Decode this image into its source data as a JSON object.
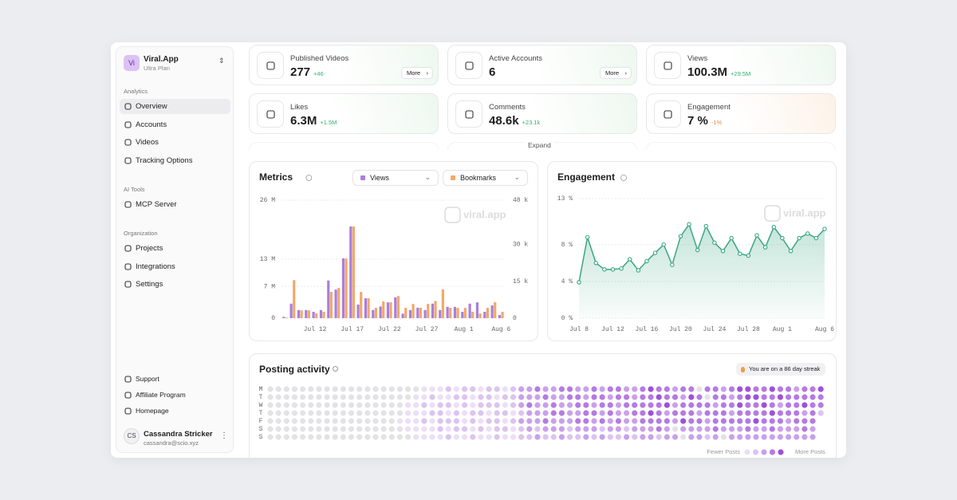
{
  "sidebar": {
    "avatar": "Vi",
    "app": "Viral.App",
    "plan": "Ultra Plan",
    "sections": [
      {
        "title": "Analytics",
        "items": [
          "Overview",
          "Accounts",
          "Videos",
          "Tracking Options"
        ]
      },
      {
        "title": "AI Tools",
        "items": [
          "MCP Server"
        ]
      },
      {
        "title": "Organization",
        "items": [
          "Projects",
          "Integrations",
          "Settings"
        ]
      }
    ],
    "footer": [
      "Support",
      "Affiliate Program",
      "Homepage"
    ],
    "user": {
      "initials": "CS",
      "name": "Cassandra Stricker",
      "email": "cassandra@scio.xyz"
    }
  },
  "stats": [
    {
      "label": "Published Videos",
      "value": "277",
      "delta": "+46",
      "action": "More"
    },
    {
      "label": "Active Accounts",
      "value": "6",
      "action": "More"
    },
    {
      "label": "Views",
      "value": "100.3M",
      "delta": "+29.5M"
    },
    {
      "label": "Likes",
      "value": "6.3M",
      "delta": "+1.5M"
    },
    {
      "label": "Comments",
      "value": "48.6k",
      "delta": "+23.1k"
    },
    {
      "label": "Engagement",
      "value": "7 %",
      "delta": "-1%"
    }
  ],
  "expand": "Expand",
  "chart_data": [
    {
      "type": "bar",
      "title": "Metrics",
      "watermark": "viral.app",
      "categories": [
        null,
        null,
        null,
        null,
        "Jul 12",
        null,
        null,
        null,
        null,
        "Jul 17",
        null,
        null,
        null,
        null,
        "Jul 22",
        null,
        null,
        null,
        null,
        "Jul 27",
        null,
        null,
        null,
        null,
        "Aug 1",
        null,
        null,
        null,
        null,
        "Aug 6"
      ],
      "series": [
        {
          "name": "Views",
          "color": "#a97ee0",
          "values": [
            0.3,
            3.2,
            1.8,
            1.8,
            1.4,
            1.8,
            8.3,
            6.3,
            13.2,
            20.2,
            3,
            4.4,
            1.8,
            2.6,
            3.5,
            4.6,
            1,
            1.8,
            2.3,
            1.8,
            3.2,
            1.8,
            2.5,
            2.5,
            1.4,
            3.2,
            3.5,
            1.4,
            2.8,
            0.7
          ]
        },
        {
          "name": "Bookmarks",
          "color": "#f2a968",
          "axis": "y2",
          "values": [
            0.3,
            15.5,
            3.2,
            3.2,
            2,
            2.6,
            10.7,
            12.3,
            24.3,
            37.3,
            10.7,
            8.1,
            4.2,
            6.8,
            6.5,
            9,
            4.2,
            5.8,
            4.2,
            5.8,
            7,
            11.7,
            4.2,
            4.2,
            4.2,
            2.6,
            1.9,
            4.2,
            6.5,
            2.6
          ]
        }
      ],
      "ylim": [
        0,
        26
      ],
      "yticks": [
        0,
        {
          "value": 7,
          "label": "7 M"
        },
        {
          "value": 13,
          "label": "13 M"
        },
        {
          "value": 26,
          "label": "26 M"
        }
      ],
      "y2lim": [
        0,
        48
      ],
      "y2ticks": [
        0,
        {
          "value": 15,
          "label": "15 k"
        },
        {
          "value": 30,
          "label": "30 k"
        },
        {
          "value": 48,
          "label": "48 k"
        }
      ],
      "grid": true
    },
    {
      "type": "line",
      "title": "Engagement",
      "watermark": "viral.app",
      "color": "#3aa683",
      "categories": [
        "Jul 8",
        null,
        null,
        null,
        "Jul 12",
        null,
        null,
        null,
        "Jul 16",
        null,
        null,
        null,
        "Jul 20",
        null,
        null,
        null,
        "Jul 24",
        null,
        null,
        null,
        "Jul 28",
        null,
        null,
        null,
        "Aug 1",
        null,
        null,
        null,
        null,
        "Aug 6"
      ],
      "values": [
        3.9,
        8.8,
        6.0,
        5.3,
        5.3,
        5.4,
        6.4,
        5.2,
        6.2,
        7.1,
        8.0,
        5.8,
        8.9,
        10.2,
        7.4,
        10.0,
        8.2,
        7.3,
        8.7,
        7.0,
        6.8,
        9.0,
        7.7,
        9.9,
        8.7,
        7.3,
        8.7,
        9.2,
        8.7,
        9.7
      ],
      "ylim": [
        0,
        13
      ],
      "yticks": [
        {
          "value": 0,
          "label": "0 %"
        },
        {
          "value": 4,
          "label": "4 %"
        },
        {
          "value": 8,
          "label": "8 %"
        },
        {
          "value": 13,
          "label": "13 %"
        }
      ],
      "grid": true
    }
  ],
  "posting": {
    "title": "Posting activity",
    "streak": "You are on a 86 day streak",
    "days": [
      "M",
      "T",
      "W",
      "T",
      "F",
      "S",
      "S"
    ],
    "legend_low": "Fewer Posts",
    "legend_high": "More Posts",
    "levels": [
      [
        0,
        0,
        0,
        0,
        0,
        0,
        0,
        0,
        0,
        0,
        0,
        0,
        0,
        0,
        0,
        0,
        0,
        0,
        0,
        1,
        1,
        1,
        2,
        1,
        2,
        2,
        1,
        2,
        2,
        1,
        2,
        3,
        3,
        4,
        3,
        3,
        4,
        4,
        3,
        3,
        4,
        3,
        4,
        4,
        3,
        3,
        4,
        5,
        4,
        4,
        3,
        4,
        4,
        0,
        4,
        4,
        3,
        4,
        5,
        5,
        4,
        4,
        5,
        4,
        4,
        3,
        4,
        4,
        5
      ],
      [
        0,
        0,
        0,
        0,
        0,
        0,
        0,
        0,
        0,
        0,
        0,
        0,
        0,
        0,
        0,
        0,
        0,
        0,
        1,
        1,
        2,
        1,
        1,
        2,
        2,
        1,
        2,
        2,
        1,
        2,
        2,
        3,
        3,
        3,
        4,
        3,
        3,
        4,
        4,
        3,
        4,
        4,
        3,
        4,
        4,
        3,
        4,
        4,
        5,
        4,
        4,
        3,
        5,
        4,
        0,
        4,
        4,
        3,
        4,
        5,
        5,
        4,
        4,
        5,
        4,
        4,
        4,
        4,
        4
      ],
      [
        0,
        0,
        0,
        0,
        0,
        0,
        0,
        0,
        0,
        0,
        0,
        0,
        0,
        0,
        0,
        0,
        0,
        1,
        1,
        2,
        1,
        2,
        2,
        1,
        2,
        1,
        2,
        2,
        2,
        1,
        2,
        3,
        4,
        3,
        3,
        4,
        3,
        3,
        4,
        4,
        3,
        4,
        4,
        3,
        4,
        4,
        4,
        4,
        4,
        5,
        3,
        4,
        4,
        4,
        4,
        3,
        4,
        4,
        5,
        4,
        4,
        5,
        4,
        3,
        4,
        4,
        5,
        4,
        4
      ],
      [
        0,
        0,
        0,
        0,
        0,
        0,
        0,
        0,
        0,
        0,
        0,
        0,
        0,
        0,
        0,
        0,
        0,
        1,
        1,
        1,
        2,
        2,
        1,
        2,
        1,
        2,
        2,
        1,
        2,
        2,
        1,
        2,
        3,
        3,
        3,
        4,
        4,
        3,
        3,
        4,
        4,
        3,
        4,
        3,
        3,
        4,
        4,
        5,
        4,
        3,
        4,
        4,
        4,
        3,
        4,
        4,
        4,
        3,
        4,
        4,
        4,
        4,
        5,
        4,
        4,
        4,
        3,
        4,
        2
      ],
      [
        0,
        0,
        0,
        0,
        0,
        0,
        0,
        0,
        0,
        0,
        0,
        0,
        0,
        0,
        0,
        0,
        1,
        1,
        1,
        2,
        1,
        2,
        2,
        2,
        1,
        2,
        1,
        2,
        2,
        1,
        2,
        3,
        3,
        3,
        4,
        3,
        3,
        3,
        4,
        4,
        3,
        4,
        3,
        4,
        3,
        3,
        4,
        4,
        4,
        4,
        3,
        5,
        4,
        4,
        3,
        4,
        4,
        4,
        4,
        4,
        5,
        4,
        4,
        4,
        3,
        4,
        4,
        4,
        null
      ],
      [
        0,
        0,
        0,
        0,
        0,
        0,
        0,
        0,
        0,
        0,
        0,
        0,
        0,
        0,
        0,
        0,
        0,
        1,
        1,
        1,
        1,
        2,
        1,
        2,
        2,
        1,
        2,
        1,
        2,
        2,
        1,
        2,
        3,
        2,
        3,
        3,
        3,
        2,
        3,
        3,
        3,
        2,
        3,
        3,
        2,
        3,
        3,
        3,
        4,
        3,
        0,
        3,
        3,
        3,
        3,
        4,
        3,
        3,
        3,
        4,
        3,
        3,
        4,
        3,
        3,
        3,
        4,
        3,
        null
      ],
      [
        0,
        0,
        0,
        0,
        0,
        0,
        0,
        0,
        0,
        0,
        0,
        0,
        0,
        0,
        0,
        0,
        0,
        0,
        1,
        1,
        1,
        1,
        2,
        1,
        1,
        2,
        1,
        1,
        2,
        1,
        1,
        2,
        2,
        3,
        2,
        2,
        3,
        2,
        2,
        3,
        2,
        3,
        2,
        2,
        3,
        2,
        3,
        3,
        2,
        3,
        3,
        0,
        3,
        3,
        2,
        3,
        0,
        3,
        3,
        3,
        3,
        3,
        3,
        3,
        3,
        3,
        3,
        3,
        null
      ]
    ]
  }
}
